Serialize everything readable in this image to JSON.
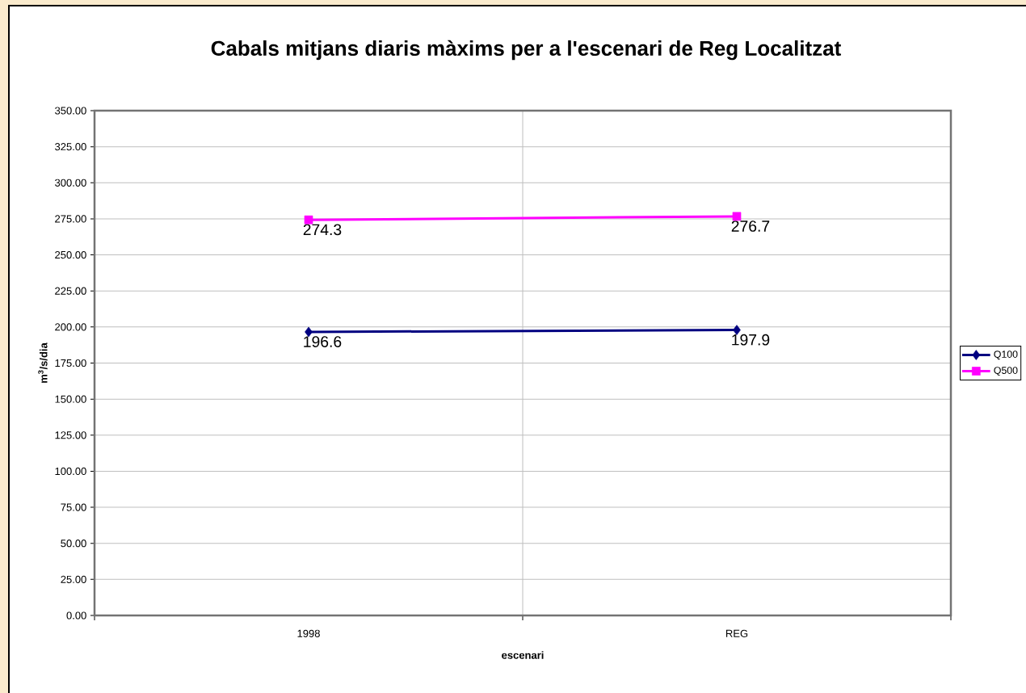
{
  "chart_data": {
    "type": "line",
    "title": "Cabals mitjans diaris màxims per a l'escenari de Reg Localitzat",
    "xlabel": "escenari",
    "ylabel": "m$^{3}$/s/dia",
    "categories": [
      "1998",
      "REG"
    ],
    "series": [
      {
        "name": "Q100",
        "color": "#000080",
        "marker": "diamond",
        "values": [
          196.6,
          197.9
        ]
      },
      {
        "name": "Q500",
        "color": "#ff00ff",
        "marker": "square",
        "values": [
          274.3,
          276.7
        ]
      }
    ],
    "ylim": [
      0,
      350
    ],
    "yticks": [
      {
        "value": 0,
        "label": "0.00"
      },
      {
        "value": 25,
        "label": "25.00"
      },
      {
        "value": 50,
        "label": "50.00"
      },
      {
        "value": 75,
        "label": "75.00"
      },
      {
        "value": 100,
        "label": "100.00"
      },
      {
        "value": 125,
        "label": "125.00"
      },
      {
        "value": 150,
        "label": "150.00"
      },
      {
        "value": 175,
        "label": "175.00"
      },
      {
        "value": 200,
        "label": "200.00"
      },
      {
        "value": 225,
        "label": "225.00"
      },
      {
        "value": 250,
        "label": "250.00"
      },
      {
        "value": 275,
        "label": "275.00"
      },
      {
        "value": 300,
        "label": "300.00"
      },
      {
        "value": 325,
        "label": "325.00"
      },
      {
        "value": 350,
        "label": "350.00"
      }
    ],
    "grid": true,
    "legend": "right",
    "data_labels": true
  }
}
